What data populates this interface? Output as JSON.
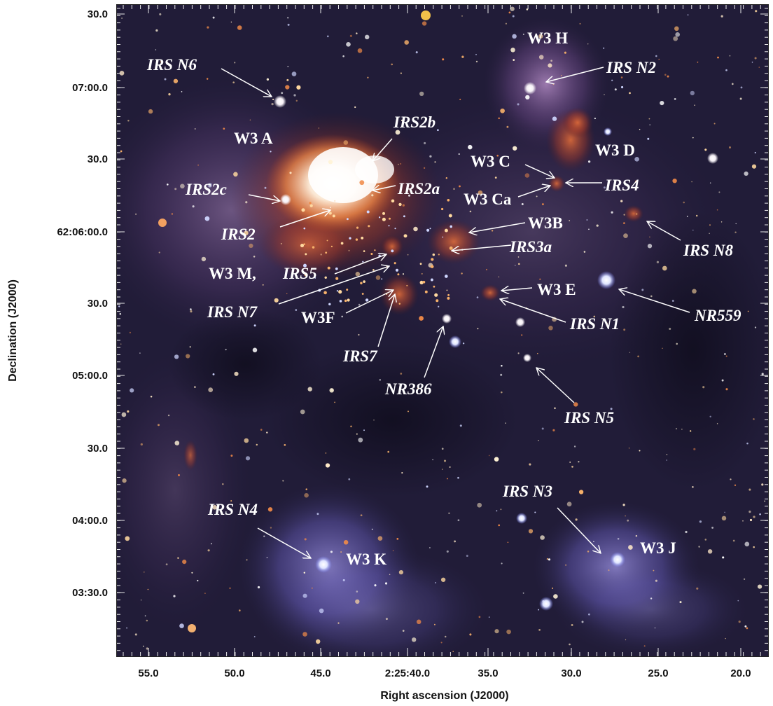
{
  "axes": {
    "xlabel": "Right ascension (J2000)",
    "ylabel": "Declination (J2000)",
    "xticks": [
      "55.0",
      "50.0",
      "45.0",
      "2:25:40.0",
      "35.0",
      "30.0",
      "25.0",
      "20.0"
    ],
    "yticks": [
      "30.0",
      "07:00.0",
      "30.0",
      "62:06:00.0",
      "30.0",
      "05:00.0",
      "30.0",
      "04:00.0",
      "03:30.0"
    ]
  },
  "labels": {
    "irs_n6": "IRS N6",
    "w3_h": "W3 H",
    "irs_n2": "IRS N2",
    "w3_a": "W3 A",
    "irs2b": "IRS2b",
    "w3_c": "W3 C",
    "w3_d": "W3 D",
    "irs2c": "IRS2c",
    "irs2a": "IRS2a",
    "w3_ca": "W3 Ca",
    "irs4": "IRS4",
    "irs2": "IRS2",
    "w3b": "W3B",
    "irs3a": "IRS3a",
    "irs_n8": "IRS N8",
    "w3_m": "W3 M,",
    "irs5": "IRS5",
    "w3_e": "W3 E",
    "irs_n7": "IRS N7",
    "w3f": "W3F",
    "irs_n1": "IRS N1",
    "nr559": "NR559",
    "irs7": "IRS7",
    "nr386": "NR386",
    "irs_n5": "IRS N5",
    "irs_n3": "IRS N3",
    "irs_n4": "IRS N4",
    "w3_k": "W3 K",
    "w3_j": "W3 J"
  },
  "colors": {
    "sky": "#1b1830",
    "nebula_warm": "#f2a060",
    "nebula_hot": "#fff4e8",
    "nebula_blue": "#8c84e6",
    "label_text": "#ffffff",
    "axis_text": "#111111"
  }
}
